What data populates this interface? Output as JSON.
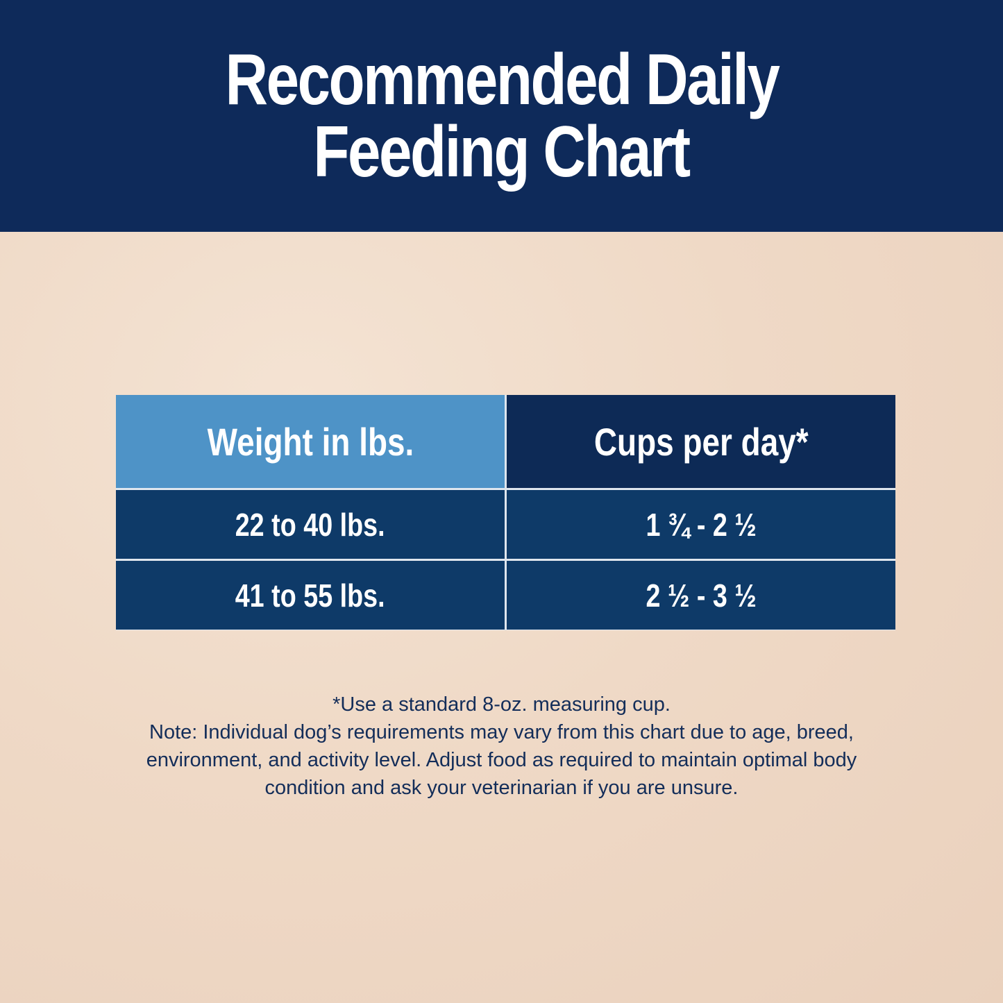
{
  "header": {
    "title_line1": "Recommended Daily",
    "title_line2": "Feeding Chart"
  },
  "table": {
    "columns": [
      "Weight in lbs.",
      "Cups per day*"
    ],
    "rows": [
      [
        "22 to 40 lbs.",
        "1 ¾ - 2 ½"
      ],
      [
        "41 to 55 lbs.",
        "2 ½ - 3 ½"
      ]
    ]
  },
  "notes": {
    "line1": "*Use a standard 8-oz. measuring cup.",
    "line2": "Note: Individual dog’s requirements may vary from this chart due to age, breed,",
    "line3": "environment, and activity level. Adjust food as required to maintain optimal body",
    "line4": "condition and ask your veterinarian if you are unsure."
  },
  "colors": {
    "header_bg": "#0e2a5a",
    "col1_header": "#4e93c7",
    "col2_header": "#0d2a56",
    "row_bg": "#0e3a68",
    "note_text": "#132d59"
  }
}
